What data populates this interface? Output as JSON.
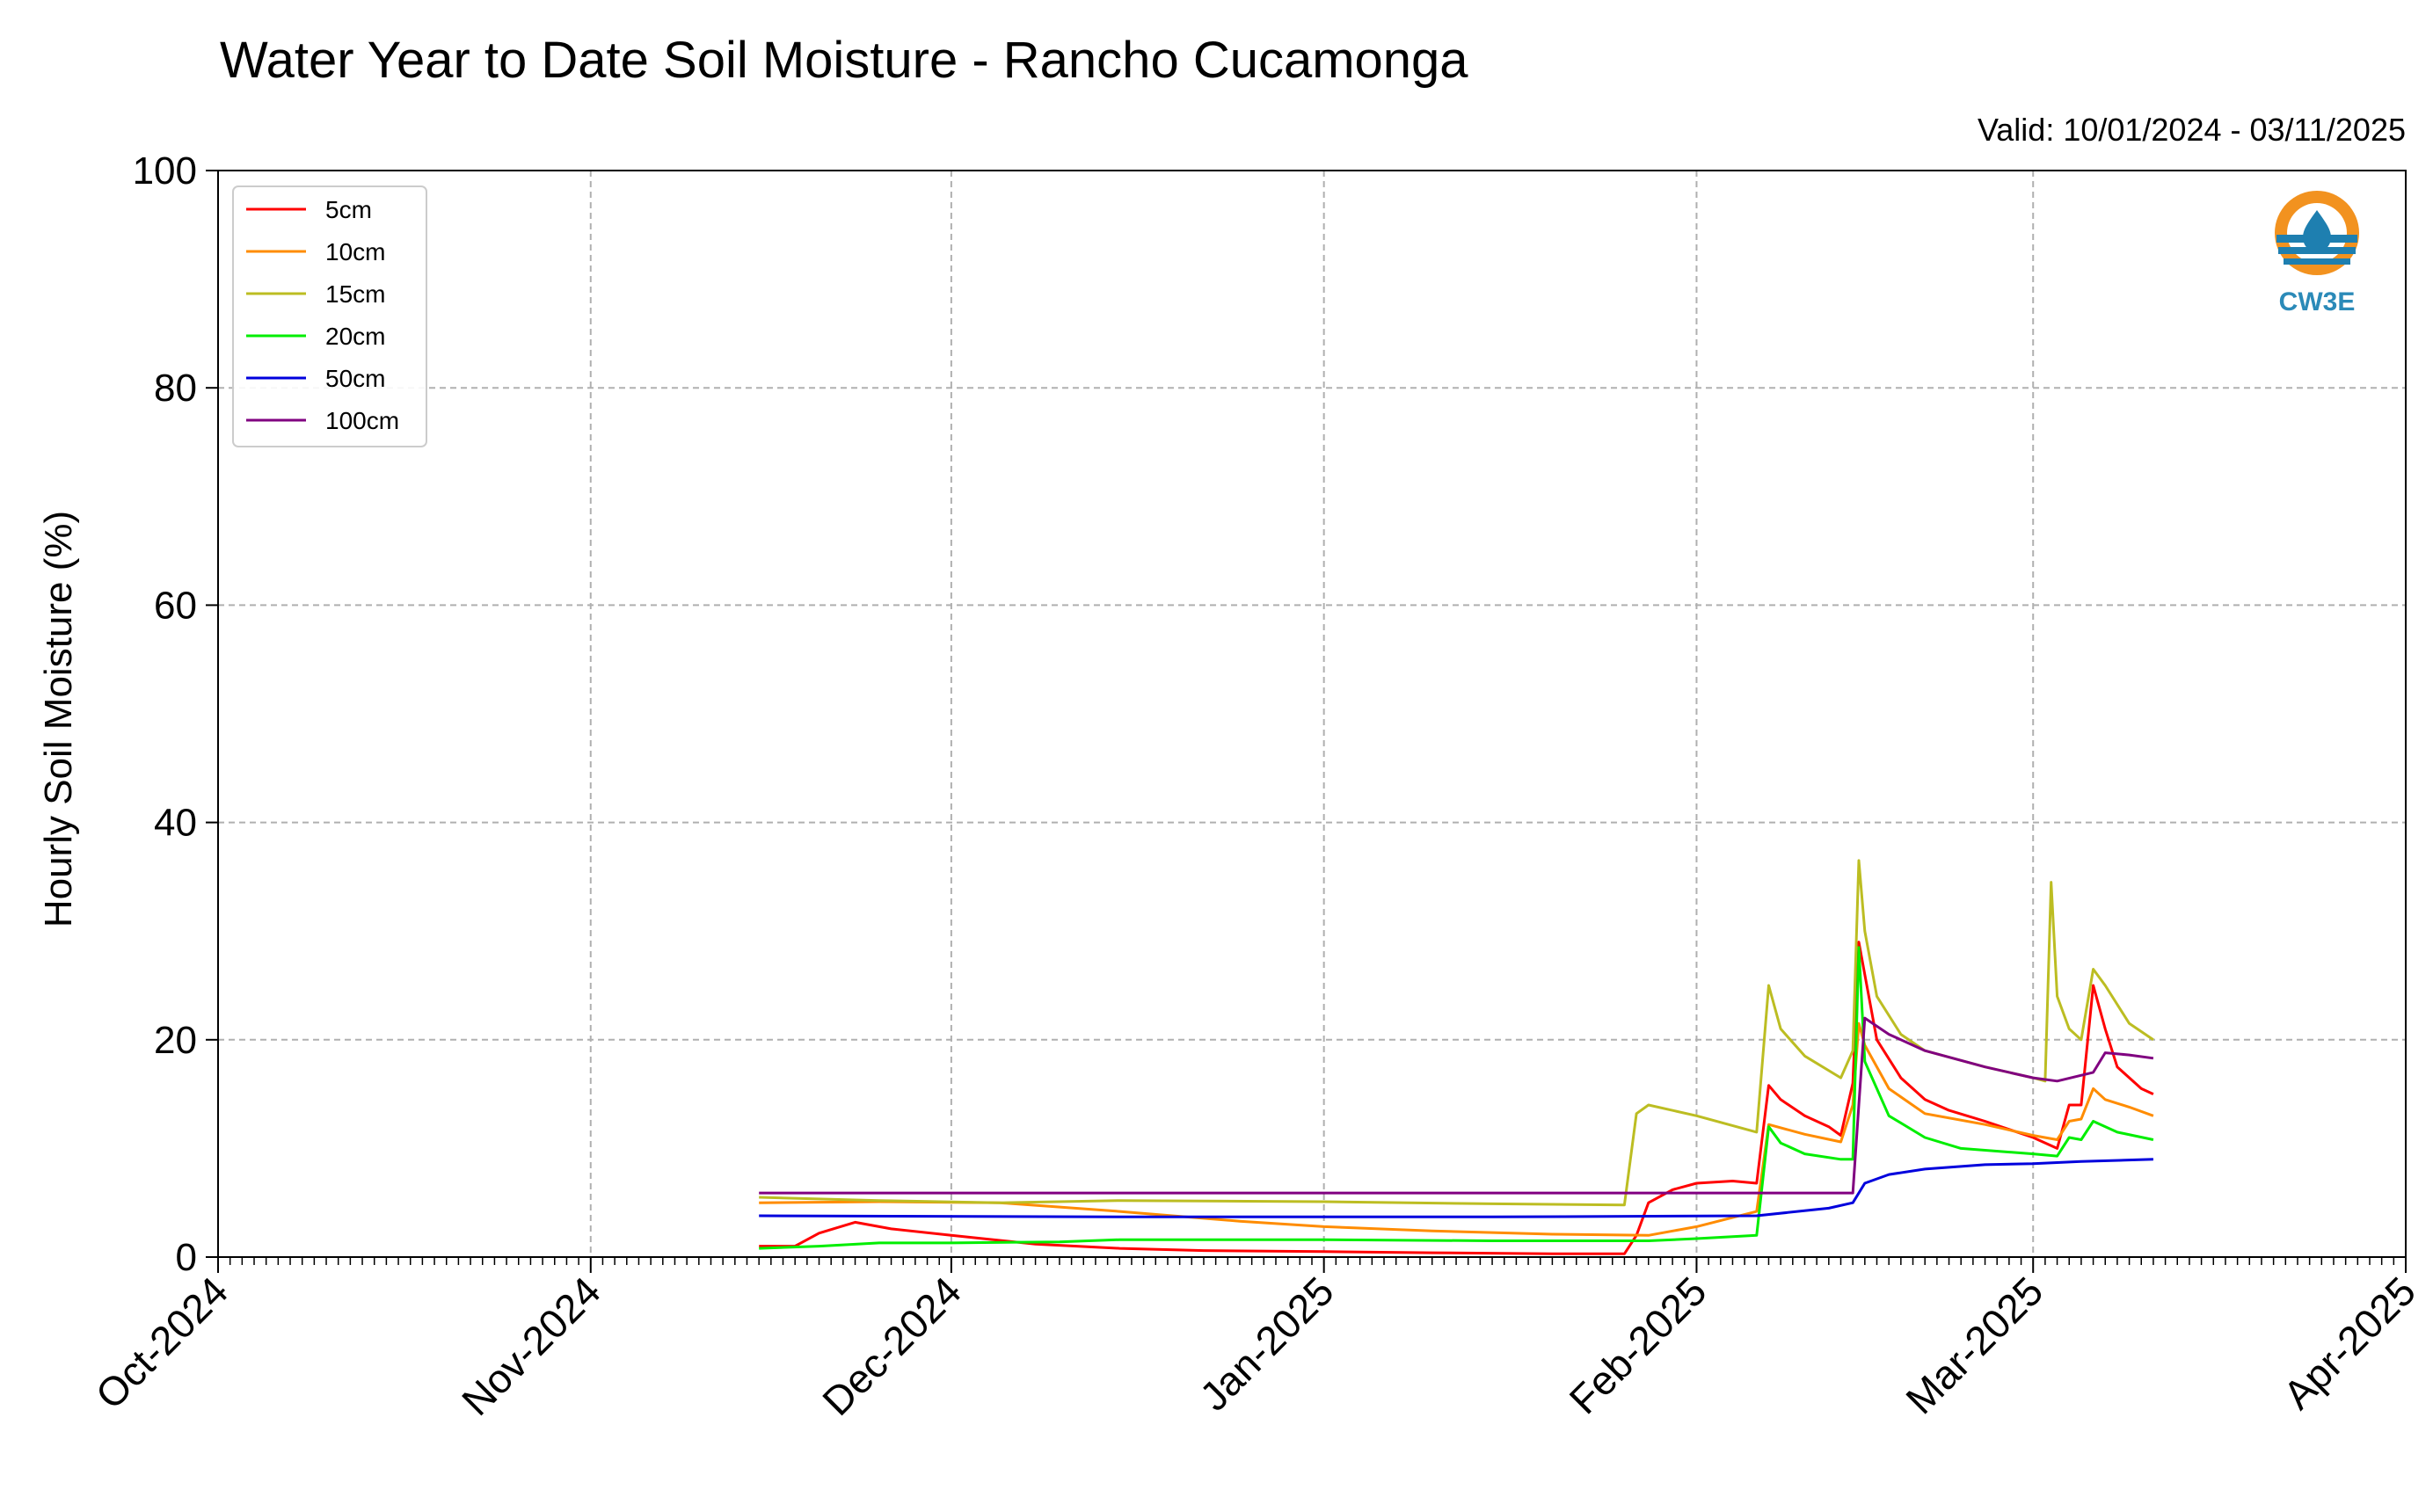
{
  "chart_data": {
    "type": "line",
    "title": "Water Year to Date Soil Moisture - Rancho Cucamonga",
    "subtitle": "Valid: 10/01/2024 - 03/11/2025",
    "ylabel": "Hourly Soil Moisture (%)",
    "xlabel": "",
    "ylim": [
      0,
      100
    ],
    "yticks": [
      "0",
      "20",
      "40",
      "60",
      "80",
      "100"
    ],
    "xlim": [
      "2024-10-01",
      "2025-04-01"
    ],
    "xticks": [
      {
        "date": "2024-10-01",
        "label": "Oct-2024"
      },
      {
        "date": "2024-11-01",
        "label": "Nov-2024"
      },
      {
        "date": "2024-12-01",
        "label": "Dec-2024"
      },
      {
        "date": "2025-01-01",
        "label": "Jan-2025"
      },
      {
        "date": "2025-02-01",
        "label": "Feb-2025"
      },
      {
        "date": "2025-03-01",
        "label": "Mar-2025"
      },
      {
        "date": "2025-04-01",
        "label": "Apr-2025"
      }
    ],
    "grid": true,
    "legend_position": "top-left",
    "logo_text": "CW3E",
    "series": [
      {
        "name": "5cm",
        "color": "#ff0000",
        "points": [
          [
            "2024-11-15",
            1.0
          ],
          [
            "2024-11-18",
            1.0
          ],
          [
            "2024-11-20",
            2.2
          ],
          [
            "2024-11-23",
            3.2
          ],
          [
            "2024-11-26",
            2.6
          ],
          [
            "2024-12-01",
            2.0
          ],
          [
            "2024-12-08",
            1.2
          ],
          [
            "2024-12-15",
            0.8
          ],
          [
            "2024-12-22",
            0.6
          ],
          [
            "2025-01-01",
            0.5
          ],
          [
            "2025-01-10",
            0.4
          ],
          [
            "2025-01-20",
            0.3
          ],
          [
            "2025-01-26",
            0.3
          ],
          [
            "2025-01-27",
            2.0
          ],
          [
            "2025-01-28",
            5.0
          ],
          [
            "2025-01-30",
            6.2
          ],
          [
            "2025-02-01",
            6.8
          ],
          [
            "2025-02-04",
            7.0
          ],
          [
            "2025-02-06",
            6.8
          ],
          [
            "2025-02-07",
            15.8
          ],
          [
            "2025-02-08",
            14.5
          ],
          [
            "2025-02-10",
            13.0
          ],
          [
            "2025-02-12",
            12.0
          ],
          [
            "2025-02-13",
            11.2
          ],
          [
            "2025-02-14",
            16.0
          ],
          [
            "2025-02-14T12:00",
            29.0
          ],
          [
            "2025-02-15",
            26.0
          ],
          [
            "2025-02-16",
            20.0
          ],
          [
            "2025-02-18",
            16.5
          ],
          [
            "2025-02-20",
            14.5
          ],
          [
            "2025-02-22",
            13.5
          ],
          [
            "2025-02-25",
            12.5
          ],
          [
            "2025-03-01",
            11.0
          ],
          [
            "2025-03-03",
            10.0
          ],
          [
            "2025-03-04",
            14.0
          ],
          [
            "2025-03-05",
            14.0
          ],
          [
            "2025-03-06",
            25.0
          ],
          [
            "2025-03-07",
            21.0
          ],
          [
            "2025-03-08",
            17.5
          ],
          [
            "2025-03-10",
            15.5
          ],
          [
            "2025-03-11",
            15.0
          ]
        ]
      },
      {
        "name": "10cm",
        "color": "#ff8c00",
        "points": [
          [
            "2024-11-15",
            5.0
          ],
          [
            "2024-11-25",
            5.1
          ],
          [
            "2024-12-05",
            5.0
          ],
          [
            "2024-12-15",
            4.2
          ],
          [
            "2024-12-25",
            3.3
          ],
          [
            "2025-01-01",
            2.8
          ],
          [
            "2025-01-10",
            2.4
          ],
          [
            "2025-01-20",
            2.1
          ],
          [
            "2025-01-28",
            2.0
          ],
          [
            "2025-02-01",
            2.8
          ],
          [
            "2025-02-06",
            4.2
          ],
          [
            "2025-02-07",
            12.2
          ],
          [
            "2025-02-10",
            11.3
          ],
          [
            "2025-02-13",
            10.6
          ],
          [
            "2025-02-14",
            14.0
          ],
          [
            "2025-02-14T12:00",
            21.5
          ],
          [
            "2025-02-15",
            19.5
          ],
          [
            "2025-02-17",
            15.5
          ],
          [
            "2025-02-20",
            13.2
          ],
          [
            "2025-02-25",
            12.2
          ],
          [
            "2025-03-01",
            11.2
          ],
          [
            "2025-03-03",
            10.8
          ],
          [
            "2025-03-04",
            12.5
          ],
          [
            "2025-03-05",
            12.7
          ],
          [
            "2025-03-06",
            15.5
          ],
          [
            "2025-03-07",
            14.5
          ],
          [
            "2025-03-09",
            13.8
          ],
          [
            "2025-03-11",
            13.0
          ]
        ]
      },
      {
        "name": "15cm",
        "color": "#bcbd22",
        "points": [
          [
            "2024-11-15",
            5.5
          ],
          [
            "2024-11-25",
            5.2
          ],
          [
            "2024-12-05",
            5.0
          ],
          [
            "2024-12-15",
            5.2
          ],
          [
            "2025-01-01",
            5.1
          ],
          [
            "2025-01-15",
            4.9
          ],
          [
            "2025-01-26",
            4.8
          ],
          [
            "2025-01-27",
            13.2
          ],
          [
            "2025-01-28",
            14.0
          ],
          [
            "2025-02-01",
            13.0
          ],
          [
            "2025-02-06",
            11.5
          ],
          [
            "2025-02-07",
            25.0
          ],
          [
            "2025-02-08",
            21.0
          ],
          [
            "2025-02-10",
            18.5
          ],
          [
            "2025-02-13",
            16.5
          ],
          [
            "2025-02-14",
            19.0
          ],
          [
            "2025-02-14T12:00",
            36.5
          ],
          [
            "2025-02-15",
            30.0
          ],
          [
            "2025-02-16",
            24.0
          ],
          [
            "2025-02-18",
            20.5
          ],
          [
            "2025-02-20",
            19.0
          ],
          [
            "2025-02-25",
            17.5
          ],
          [
            "2025-03-01",
            16.5
          ],
          [
            "2025-03-02",
            16.2
          ],
          [
            "2025-03-02T12:00",
            34.5
          ],
          [
            "2025-03-03",
            24.0
          ],
          [
            "2025-03-04",
            21.0
          ],
          [
            "2025-03-05",
            20.0
          ],
          [
            "2025-03-06",
            26.5
          ],
          [
            "2025-03-07",
            25.0
          ],
          [
            "2025-03-09",
            21.5
          ],
          [
            "2025-03-11",
            20.0
          ]
        ]
      },
      {
        "name": "20cm",
        "color": "#00ee00",
        "points": [
          [
            "2024-11-15",
            0.8
          ],
          [
            "2024-11-20",
            1.0
          ],
          [
            "2024-11-25",
            1.3
          ],
          [
            "2024-12-01",
            1.3
          ],
          [
            "2024-12-10",
            1.4
          ],
          [
            "2024-12-15",
            1.6
          ],
          [
            "2025-01-01",
            1.6
          ],
          [
            "2025-01-15",
            1.5
          ],
          [
            "2025-01-28",
            1.5
          ],
          [
            "2025-02-01",
            1.7
          ],
          [
            "2025-02-06",
            2.0
          ],
          [
            "2025-02-07",
            12.0
          ],
          [
            "2025-02-08",
            10.5
          ],
          [
            "2025-02-10",
            9.5
          ],
          [
            "2025-02-13",
            9.0
          ],
          [
            "2025-02-14",
            9.0
          ],
          [
            "2025-02-14T12:00",
            28.5
          ],
          [
            "2025-02-15",
            18.0
          ],
          [
            "2025-02-17",
            13.0
          ],
          [
            "2025-02-20",
            11.0
          ],
          [
            "2025-02-23",
            10.0
          ],
          [
            "2025-03-01",
            9.5
          ],
          [
            "2025-03-03",
            9.3
          ],
          [
            "2025-03-04",
            11.0
          ],
          [
            "2025-03-05",
            10.8
          ],
          [
            "2025-03-06",
            12.5
          ],
          [
            "2025-03-08",
            11.5
          ],
          [
            "2025-03-11",
            10.8
          ]
        ]
      },
      {
        "name": "50cm",
        "color": "#0000dd",
        "points": [
          [
            "2024-11-15",
            3.8
          ],
          [
            "2024-12-15",
            3.7
          ],
          [
            "2025-01-15",
            3.7
          ],
          [
            "2025-02-06",
            3.8
          ],
          [
            "2025-02-12",
            4.5
          ],
          [
            "2025-02-14",
            5.0
          ],
          [
            "2025-02-15",
            6.8
          ],
          [
            "2025-02-17",
            7.6
          ],
          [
            "2025-02-20",
            8.1
          ],
          [
            "2025-02-25",
            8.5
          ],
          [
            "2025-03-01",
            8.6
          ],
          [
            "2025-03-05",
            8.8
          ],
          [
            "2025-03-11",
            9.0
          ]
        ]
      },
      {
        "name": "100cm",
        "color": "#800080",
        "points": [
          [
            "2024-11-15",
            5.9
          ],
          [
            "2024-12-15",
            5.9
          ],
          [
            "2025-01-15",
            5.9
          ],
          [
            "2025-02-14",
            5.9
          ],
          [
            "2025-02-14T12:00",
            14.0
          ],
          [
            "2025-02-15",
            22.0
          ],
          [
            "2025-02-17",
            20.5
          ],
          [
            "2025-02-20",
            19.0
          ],
          [
            "2025-02-25",
            17.5
          ],
          [
            "2025-03-01",
            16.5
          ],
          [
            "2025-03-03",
            16.2
          ],
          [
            "2025-03-06",
            17.0
          ],
          [
            "2025-03-07",
            18.8
          ],
          [
            "2025-03-09",
            18.6
          ],
          [
            "2025-03-11",
            18.3
          ]
        ]
      }
    ]
  }
}
